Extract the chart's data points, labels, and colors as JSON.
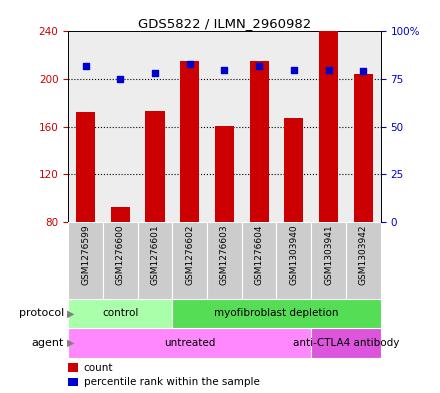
{
  "title": "GDS5822 / ILMN_2960982",
  "samples": [
    "GSM1276599",
    "GSM1276600",
    "GSM1276601",
    "GSM1276602",
    "GSM1276603",
    "GSM1276604",
    "GSM1303940",
    "GSM1303941",
    "GSM1303942"
  ],
  "counts": [
    172,
    93,
    173,
    215,
    161,
    215,
    167,
    240,
    204
  ],
  "percentile_ranks": [
    82,
    75,
    78,
    83,
    80,
    82,
    80,
    80,
    79
  ],
  "ymin": 80,
  "ymax": 240,
  "y_left_ticks": [
    80,
    120,
    160,
    200,
    240
  ],
  "y_right_ticks": [
    0,
    25,
    50,
    75,
    100
  ],
  "bar_color": "#cc0000",
  "dot_color": "#0000cc",
  "protocol_groups": [
    {
      "label": "control",
      "start": 0,
      "end": 3,
      "color": "#aaffaa"
    },
    {
      "label": "myofibroblast depletion",
      "start": 3,
      "end": 9,
      "color": "#55dd55"
    }
  ],
  "agent_groups": [
    {
      "label": "untreated",
      "start": 0,
      "end": 7,
      "color": "#ff88ff"
    },
    {
      "label": "anti-CTLA4 antibody",
      "start": 7,
      "end": 9,
      "color": "#dd55dd"
    }
  ],
  "tick_color_left": "#cc0000",
  "tick_color_right": "#0000cc",
  "grid_dotted_values": [
    120,
    160,
    200
  ],
  "col_bg_color": "#cccccc",
  "col_border_color": "#ffffff"
}
